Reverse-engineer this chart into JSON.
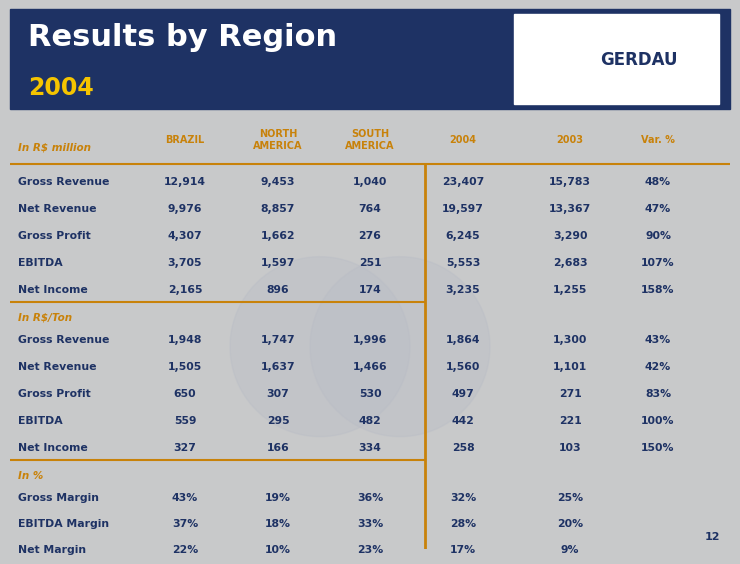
{
  "title_line1": "Results by Region",
  "title_line2": "2004",
  "header_bg": "#1e3264",
  "table_bg": "#c8c9ca",
  "title_color1": "#ffffff",
  "title_color2": "#f5c400",
  "orange_color": "#c8820a",
  "dark_blue": "#1e3264",
  "section1_label": "In R$ million",
  "col_headers": [
    "BRAZIL",
    "NORTH\nAMERICA",
    "SOUTH\nAMERICA",
    "2004",
    "2003",
    "Var. %"
  ],
  "section1_rows": [
    [
      "Gross Revenue",
      "12,914",
      "9,453",
      "1,040",
      "23,407",
      "15,783",
      "48%"
    ],
    [
      "Net Revenue",
      "9,976",
      "8,857",
      "764",
      "19,597",
      "13,367",
      "47%"
    ],
    [
      "Gross Profit",
      "4,307",
      "1,662",
      "276",
      "6,245",
      "3,290",
      "90%"
    ],
    [
      "EBITDA",
      "3,705",
      "1,597",
      "251",
      "5,553",
      "2,683",
      "107%"
    ],
    [
      "Net Income",
      "2,165",
      "896",
      "174",
      "3,235",
      "1,255",
      "158%"
    ]
  ],
  "section2_label": "In R$/Ton",
  "section2_rows": [
    [
      "Gross Revenue",
      "1,948",
      "1,747",
      "1,996",
      "1,864",
      "1,300",
      "43%"
    ],
    [
      "Net Revenue",
      "1,505",
      "1,637",
      "1,466",
      "1,560",
      "1,101",
      "42%"
    ],
    [
      "Gross Profit",
      "650",
      "307",
      "530",
      "497",
      "271",
      "83%"
    ],
    [
      "EBITDA",
      "559",
      "295",
      "482",
      "442",
      "221",
      "100%"
    ],
    [
      "Net Income",
      "327",
      "166",
      "334",
      "258",
      "103",
      "150%"
    ]
  ],
  "section3_label": "In %",
  "section3_rows": [
    [
      "Gross Margin",
      "43%",
      "19%",
      "36%",
      "32%",
      "25%",
      ""
    ],
    [
      "EBITDA Margin",
      "37%",
      "18%",
      "33%",
      "28%",
      "20%",
      ""
    ],
    [
      "Net Margin",
      "22%",
      "10%",
      "23%",
      "17%",
      "9%",
      ""
    ]
  ],
  "page_number": "12",
  "watermark_color": "#b0b4be",
  "logo_bg": "#ffffff"
}
